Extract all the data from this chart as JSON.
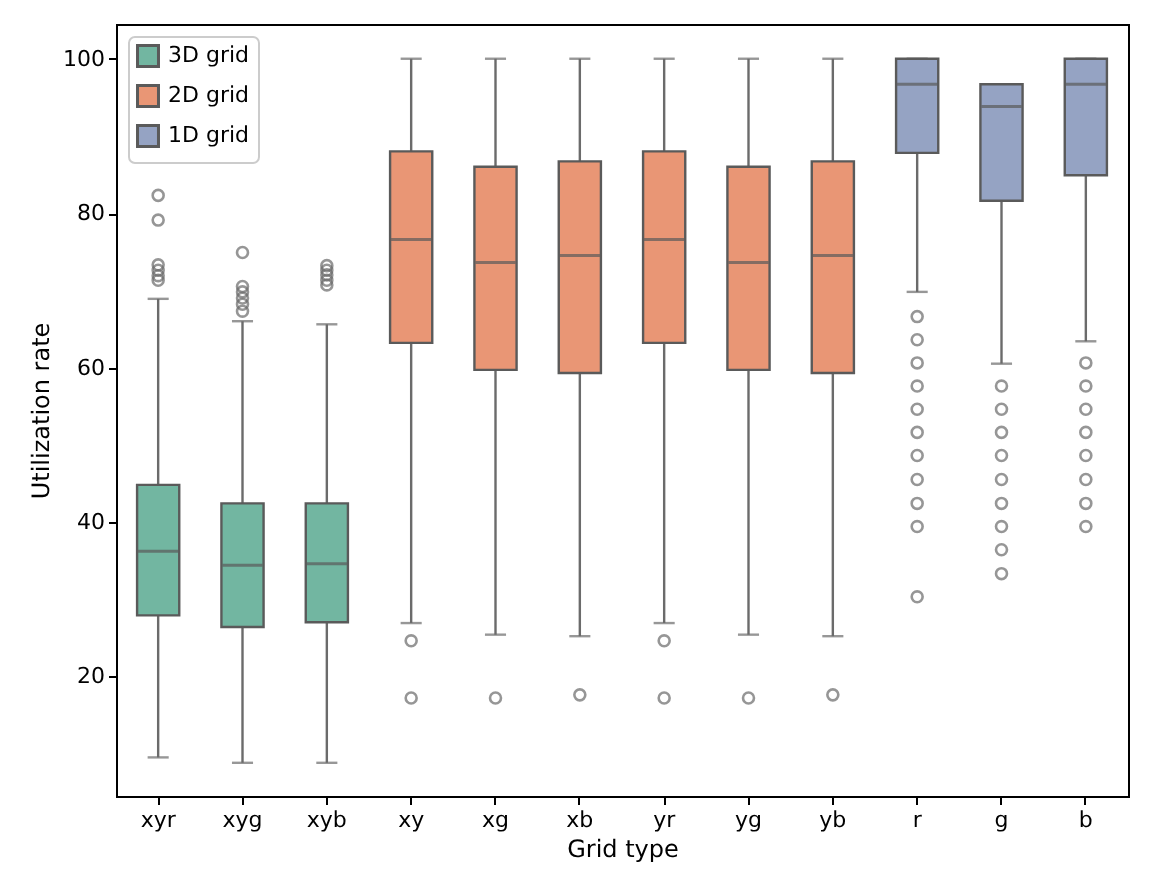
{
  "chart_data": {
    "type": "box",
    "xlabel": "Grid type",
    "ylabel": "Utilization rate",
    "categories": [
      "xyr",
      "xyg",
      "xyb",
      "xy",
      "xg",
      "xb",
      "yr",
      "yg",
      "yb",
      "r",
      "g",
      "b"
    ],
    "ylim": [
      4.5,
      104.5
    ],
    "yticks": [
      20,
      40,
      60,
      80,
      100
    ],
    "grid": false,
    "legend": "top left",
    "series": [
      {
        "name": "3D grid",
        "color": "#72b6a1",
        "boxes": [
          {
            "low": 9.5,
            "q1": 27.9,
            "median": 36.2,
            "q3": 44.8,
            "high": 68.9,
            "outliers": [
              82.3,
              79.1,
              73.3,
              72.6,
              71.9,
              71.3
            ]
          },
          {
            "low": 8.8,
            "q1": 26.4,
            "median": 34.4,
            "q3": 42.4,
            "high": 66,
            "outliers": [
              74.9,
              70.5,
              69.8,
              69,
              68.2,
              67.3
            ]
          },
          {
            "low": 8.8,
            "q1": 27,
            "median": 34.6,
            "q3": 42.4,
            "high": 65.6,
            "outliers": [
              73.2,
              72.6,
              72,
              71.3,
              70.7
            ]
          },
          null,
          null,
          null,
          null,
          null,
          null,
          null,
          null,
          null
        ]
      },
      {
        "name": "2D grid",
        "color": "#e99675",
        "boxes": [
          null,
          null,
          null,
          {
            "low": 26.9,
            "q1": 63.2,
            "median": 76.6,
            "q3": 88,
            "high": 100,
            "outliers": [
              24.6,
              17.2
            ]
          },
          {
            "low": 25.4,
            "q1": 59.7,
            "median": 73.6,
            "q3": 86,
            "high": 100,
            "outliers": [
              17.2
            ]
          },
          {
            "low": 25.2,
            "q1": 59.3,
            "median": 74.5,
            "q3": 86.7,
            "high": 100,
            "outliers": [
              17.6
            ]
          },
          {
            "low": 26.9,
            "q1": 63.2,
            "median": 76.6,
            "q3": 88,
            "high": 100,
            "outliers": [
              24.6,
              17.2
            ]
          },
          {
            "low": 25.4,
            "q1": 59.7,
            "median": 73.6,
            "q3": 86,
            "high": 100,
            "outliers": [
              17.2
            ]
          },
          {
            "low": 25.2,
            "q1": 59.3,
            "median": 74.5,
            "q3": 86.7,
            "high": 100,
            "outliers": [
              17.6
            ]
          },
          null,
          null,
          null
        ]
      },
      {
        "name": "1D grid",
        "color": "#95a3c3",
        "boxes": [
          null,
          null,
          null,
          null,
          null,
          null,
          null,
          null,
          null,
          {
            "low": 69.8,
            "q1": 87.8,
            "median": 96.7,
            "q3": 100,
            "high": 100,
            "outliers": [
              66.6,
              63.6,
              60.6,
              57.6,
              54.6,
              51.6,
              48.6,
              45.5,
              42.4,
              39.4,
              30.3
            ]
          },
          {
            "low": 60.5,
            "q1": 81.6,
            "median": 93.8,
            "q3": 96.7,
            "high": 96.7,
            "outliers": [
              57.6,
              54.6,
              51.6,
              48.6,
              45.5,
              42.4,
              39.4,
              36.4,
              33.3
            ]
          },
          {
            "low": 63.4,
            "q1": 84.9,
            "median": 96.7,
            "q3": 100,
            "high": 100,
            "outliers": [
              60.6,
              57.6,
              54.6,
              51.6,
              48.6,
              45.5,
              42.4,
              39.4
            ]
          }
        ]
      }
    ]
  }
}
